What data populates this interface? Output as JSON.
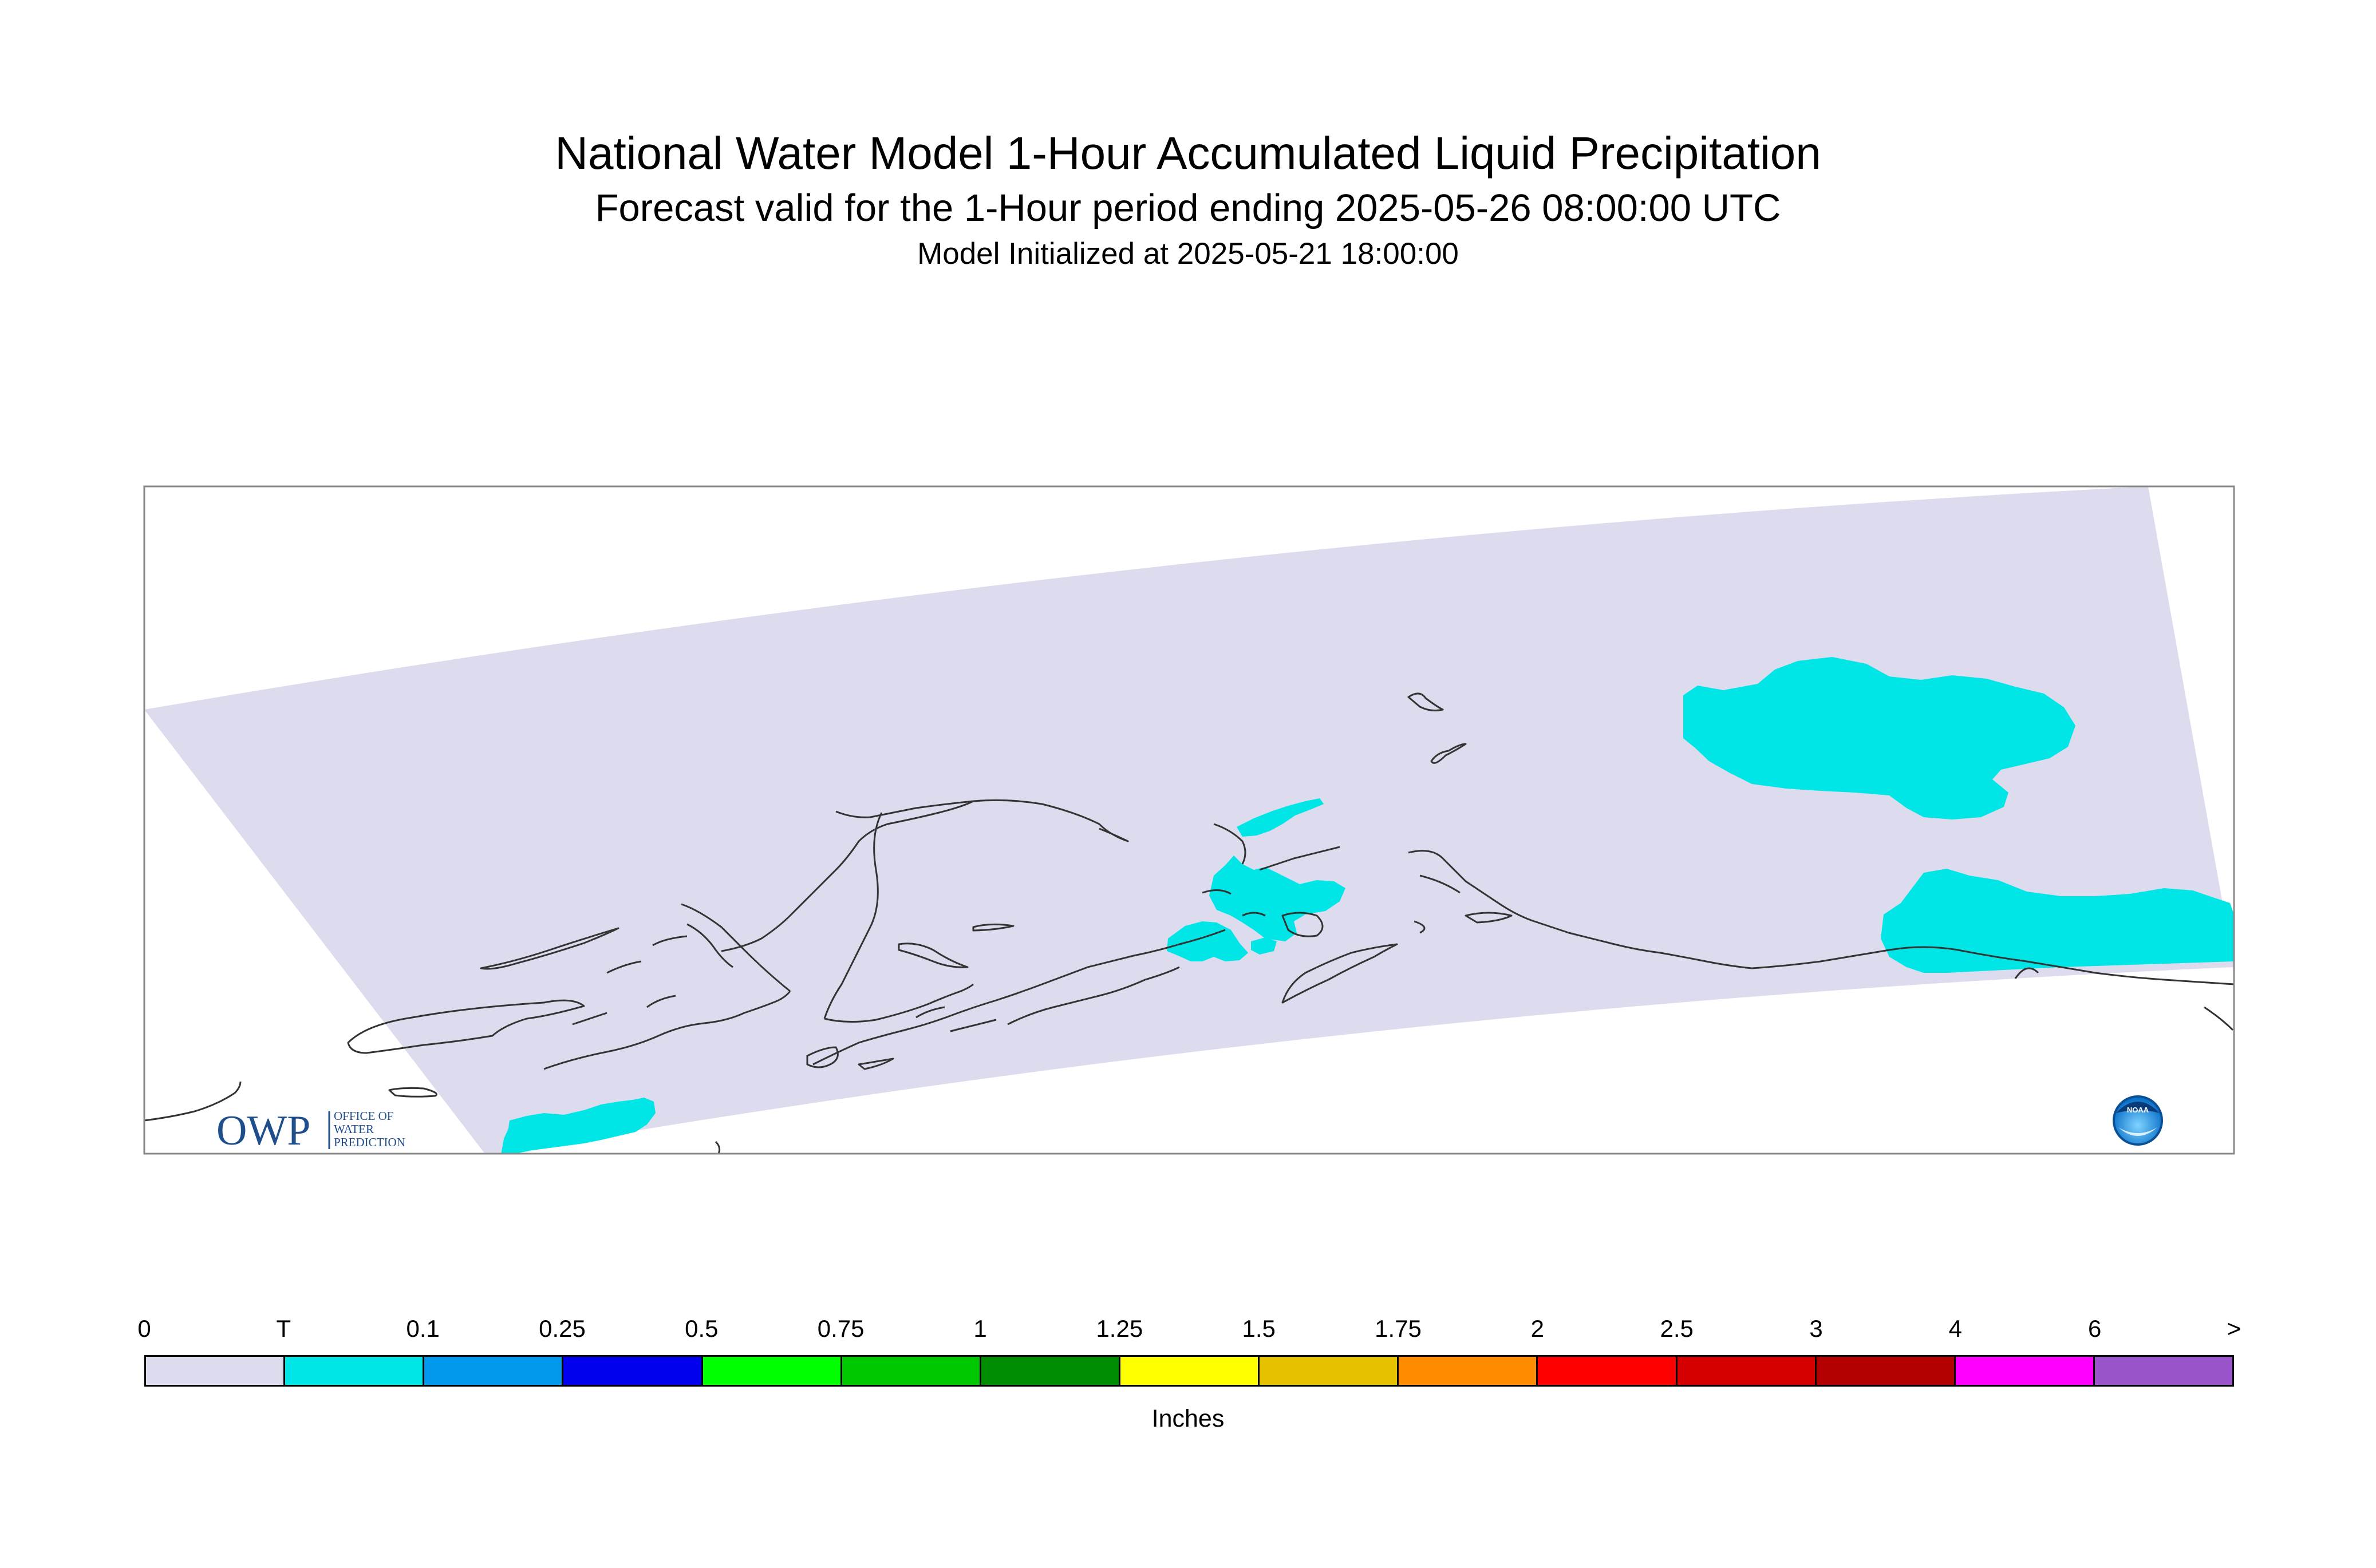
{
  "title": {
    "line1": "National Water Model 1-Hour Accumulated Liquid Precipitation",
    "line2": "Forecast valid for the 1-Hour period ending 2025-05-26 08:00:00 UTC",
    "line3": "Model Initialized at 2025-05-21 18:00:00"
  },
  "map": {
    "domain_fill": "#dcdcee",
    "precip_fill": "#00e5e5",
    "coast_color": "#333333",
    "logos": {
      "owp": {
        "text": "OWP",
        "sub1": "OFFICE OF",
        "sub2": "WATER",
        "sub3": "PREDICTION"
      },
      "noaa": {
        "text": "NOAA"
      }
    }
  },
  "legend": {
    "labels": [
      "0",
      "T",
      "0.1",
      "0.25",
      "0.5",
      "0.75",
      "1",
      "1.25",
      "1.5",
      "1.75",
      "2",
      "2.5",
      "3",
      "4",
      "6",
      ">"
    ],
    "colors": [
      "#dcdcee",
      "#00e5e5",
      "#0099ee",
      "#0000ee",
      "#00ff00",
      "#00c800",
      "#008c00",
      "#ffff00",
      "#e5c100",
      "#ff8c00",
      "#ff0000",
      "#d70000",
      "#b40000",
      "#ff00ff",
      "#9955c9"
    ],
    "units": "Inches"
  }
}
